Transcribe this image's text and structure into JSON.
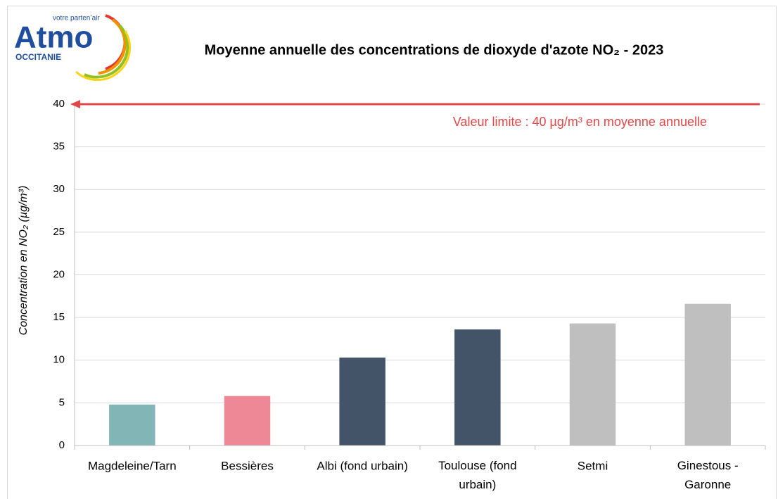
{
  "logo": {
    "name": "Atmo",
    "tagline": "votre partenʼair",
    "region": "OCCITANIE"
  },
  "chart_data": {
    "type": "bar",
    "title": "Moyenne annuelle des concentrations de dioxyde d'azote NO₂ - 2023",
    "y_label": "Concentration en NO₂ (µg/m³)",
    "categories": [
      "Magdeleine/Tarn",
      "Bessières",
      "Albi (fond urbain)",
      "Toulouse (fond urbain)",
      "Setmi",
      "Ginestous - Garonne"
    ],
    "values": [
      4.8,
      5.8,
      10.3,
      13.6,
      14.3,
      16.6
    ],
    "colors": [
      "#82b5b5",
      "#ee8896",
      "#435368",
      "#435368",
      "#bfbfbf",
      "#bfbfbf"
    ],
    "ylim": [
      0,
      40
    ],
    "yticks": [
      0,
      5,
      10,
      15,
      20,
      25,
      30,
      35,
      40
    ],
    "grid": true,
    "reference_line": {
      "value": 40,
      "label": "Valeur limite : 40 µg/m³ en moyenne annuelle",
      "color": "#e04848"
    }
  }
}
